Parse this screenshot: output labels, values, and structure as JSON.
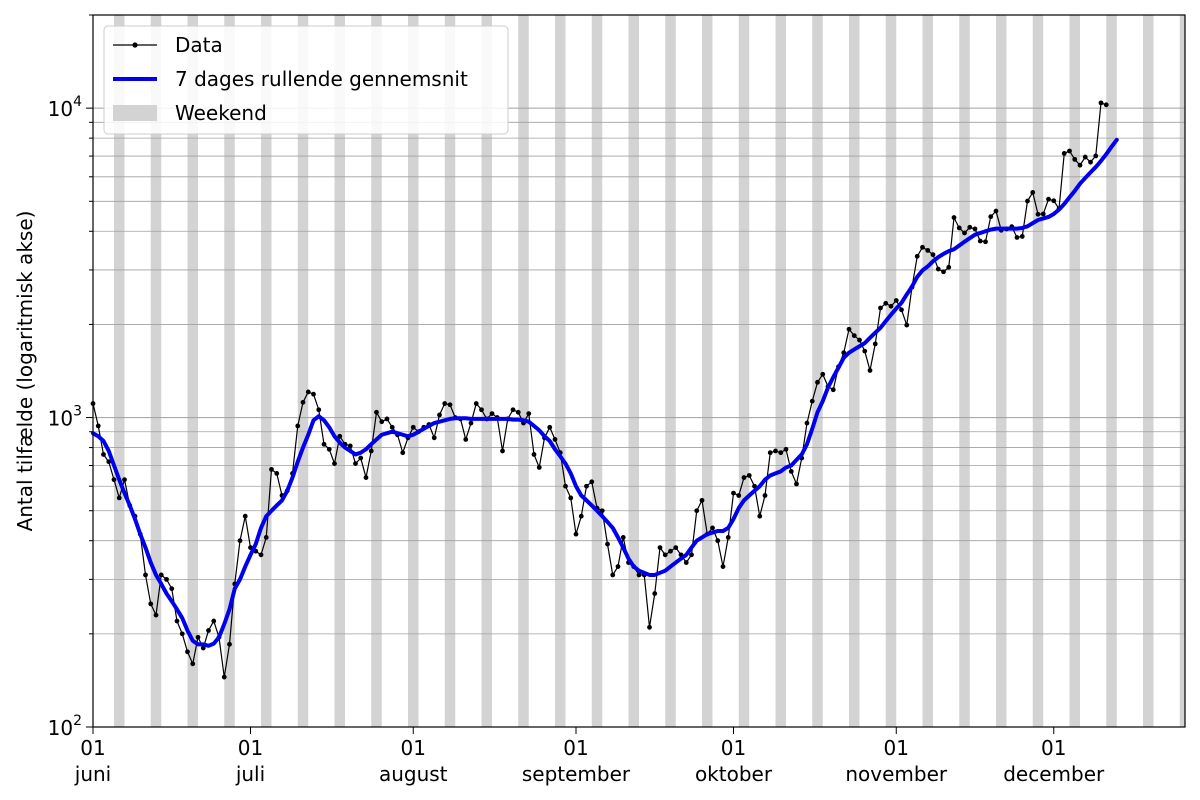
{
  "chart_data": {
    "type": "line",
    "xlabel": "",
    "ylabel": "Antal tilfælde (logaritmisk akse)",
    "yscale": "log",
    "ylim": [
      100,
      20000
    ],
    "xlim": [
      "2021-06-01",
      "2021-12-26"
    ],
    "y_ticks": [
      {
        "base": "10",
        "exp": "2",
        "value": 100
      },
      {
        "base": "10",
        "exp": "3",
        "value": 1000
      },
      {
        "base": "10",
        "exp": "4",
        "value": 10000
      }
    ],
    "x_ticks": [
      {
        "day": "01",
        "month": "juni",
        "date": "2021-06-01"
      },
      {
        "day": "01",
        "month": "juli",
        "date": "2021-07-01"
      },
      {
        "day": "01",
        "month": "august",
        "date": "2021-08-01"
      },
      {
        "day": "01",
        "month": "september",
        "date": "2021-09-01"
      },
      {
        "day": "01",
        "month": "oktober",
        "date": "2021-10-01"
      },
      {
        "day": "01",
        "month": "november",
        "date": "2021-11-01"
      },
      {
        "day": "01",
        "month": "december",
        "date": "2021-12-01"
      }
    ],
    "grid": "y-major-and-minor",
    "legend": {
      "placement": "top-left",
      "entries": [
        {
          "label": "Data",
          "style": "black-line-dots"
        },
        {
          "label": "7 dages rullende gennemsnit",
          "style": "blue-thick-line"
        },
        {
          "label": "Weekend",
          "style": "gray-band"
        }
      ]
    },
    "weekend_start_dates": [
      "2021-06-05",
      "2021-06-12",
      "2021-06-19",
      "2021-06-26",
      "2021-07-03",
      "2021-07-10",
      "2021-07-17",
      "2021-07-24",
      "2021-07-31",
      "2021-08-07",
      "2021-08-14",
      "2021-08-21",
      "2021-08-28",
      "2021-09-04",
      "2021-09-11",
      "2021-09-18",
      "2021-09-25",
      "2021-10-02",
      "2021-10-09",
      "2021-10-16",
      "2021-10-23",
      "2021-10-30",
      "2021-11-06",
      "2021-11-13",
      "2021-11-20",
      "2021-11-27",
      "2021-12-04",
      "2021-12-11",
      "2021-12-18",
      "2021-12-25"
    ],
    "series": [
      {
        "name": "Data",
        "start_date": "2021-06-01",
        "color": "#000000",
        "values": [
          1110,
          940,
          760,
          720,
          630,
          550,
          630,
          520,
          480,
          420,
          310,
          250,
          230,
          310,
          300,
          280,
          220,
          200,
          175,
          160,
          195,
          180,
          205,
          220,
          195,
          145,
          185,
          290,
          400,
          480,
          380,
          370,
          360,
          410,
          680,
          660,
          560,
          580,
          660,
          940,
          1120,
          1210,
          1190,
          1060,
          820,
          790,
          710,
          870,
          820,
          810,
          710,
          740,
          640,
          780,
          1040,
          970,
          990,
          930,
          880,
          770,
          860,
          930,
          900,
          930,
          950,
          860,
          1020,
          1110,
          1100,
          1000,
          990,
          850,
          960,
          1110,
          1060,
          990,
          1030,
          1000,
          780,
          990,
          1060,
          1040,
          960,
          1030,
          760,
          690,
          860,
          930,
          850,
          770,
          600,
          550,
          420,
          480,
          600,
          620,
          510,
          500,
          390,
          310,
          330,
          410,
          340,
          330,
          310,
          310,
          210,
          270,
          380,
          360,
          370,
          380,
          360,
          340,
          360,
          500,
          540,
          420,
          440,
          400,
          330,
          410,
          570,
          560,
          640,
          650,
          600,
          480,
          560,
          770,
          780,
          770,
          790,
          670,
          610,
          740,
          960,
          1130,
          1300,
          1380,
          1260,
          1230,
          1460,
          1620,
          1930,
          1840,
          1780,
          1640,
          1420,
          1730,
          2260,
          2340,
          2290,
          2390,
          2230,
          1990,
          2640,
          3320,
          3550,
          3470,
          3360,
          3020,
          2960,
          3060,
          4430,
          4100,
          3950,
          4120,
          4070,
          3720,
          3700,
          4460,
          4650,
          4030,
          4070,
          4140,
          3820,
          3850,
          5010,
          5340,
          4540,
          4550,
          5080,
          5020,
          4730,
          7140,
          7270,
          6830,
          6540,
          6950,
          6690,
          7010,
          10400,
          10250
        ]
      },
      {
        "name": "7 dages rullende gennemsnit",
        "start_date": "2021-06-01",
        "color": "#0000ee",
        "values": [
          890,
          870,
          840,
          780,
          700,
          630,
          570,
          520,
          470,
          420,
          380,
          340,
          310,
          290,
          270,
          255,
          240,
          225,
          205,
          190,
          185,
          185,
          183,
          186,
          195,
          215,
          240,
          280,
          300,
          330,
          360,
          390,
          440,
          480,
          500,
          520,
          540,
          580,
          640,
          720,
          800,
          880,
          980,
          1010,
          980,
          930,
          870,
          830,
          800,
          780,
          760,
          770,
          790,
          820,
          850,
          880,
          890,
          900,
          890,
          880,
          870,
          880,
          900,
          920,
          940,
          960,
          970,
          980,
          990,
          995,
          995,
          995,
          990,
          990,
          990,
          990,
          990,
          990,
          990,
          990,
          985,
          985,
          980,
          970,
          940,
          910,
          870,
          840,
          790,
          750,
          710,
          660,
          600,
          560,
          540,
          520,
          500,
          480,
          460,
          440,
          410,
          380,
          350,
          330,
          320,
          315,
          310,
          310,
          315,
          320,
          330,
          340,
          350,
          360,
          380,
          400,
          410,
          420,
          425,
          430,
          430,
          440,
          470,
          510,
          540,
          560,
          580,
          600,
          630,
          650,
          660,
          670,
          690,
          700,
          730,
          760,
          820,
          920,
          1040,
          1130,
          1250,
          1350,
          1450,
          1560,
          1620,
          1660,
          1700,
          1740,
          1810,
          1880,
          1950,
          2050,
          2150,
          2250,
          2350,
          2500,
          2650,
          2850,
          2990,
          3080,
          3200,
          3300,
          3380,
          3450,
          3500,
          3600,
          3700,
          3800,
          3900,
          3950,
          4000,
          4050,
          4080,
          4080,
          4080,
          4080,
          4080,
          4100,
          4150,
          4250,
          4350,
          4400,
          4450,
          4550,
          4700,
          4900,
          5150,
          5400,
          5700,
          5950,
          6200,
          6450,
          6750,
          7100,
          7500,
          7900
        ]
      }
    ]
  }
}
